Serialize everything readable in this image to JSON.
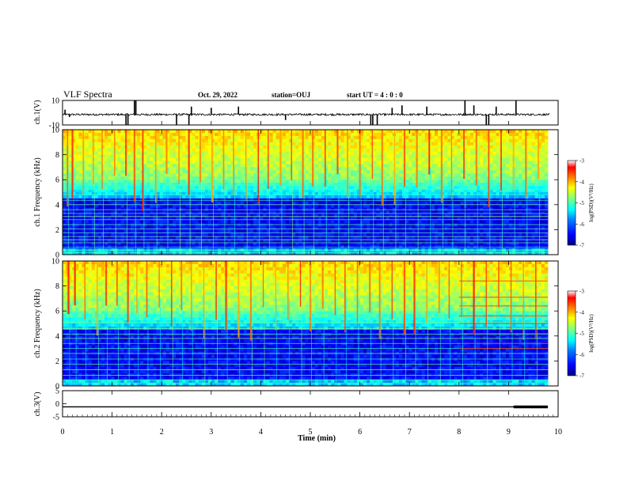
{
  "header": {
    "title": "VLF Spectra",
    "date": "Oct. 29, 2022",
    "station": "station=OUJ",
    "start_time": "start  UT =  4 : 0 : 0"
  },
  "chart_data": [
    {
      "type": "line",
      "panel": "ch1-waveform",
      "ylabel": "ch.1(V)",
      "ylim": [
        -10,
        10
      ],
      "yticks": [
        "10",
        "-10"
      ],
      "x_range_min": [
        0,
        9.83
      ],
      "baseline": -1.5,
      "noise_amplitude": 0.8,
      "spikes": [
        {
          "t": 0.05,
          "v": 2.5
        },
        {
          "t": 0.14,
          "v": -3.5
        },
        {
          "t": 1.28,
          "v": -10
        },
        {
          "t": 1.32,
          "v": -10
        },
        {
          "t": 1.45,
          "v": 10
        },
        {
          "t": 1.48,
          "v": 10
        },
        {
          "t": 2.3,
          "v": -10
        },
        {
          "t": 2.55,
          "v": -10
        },
        {
          "t": 2.6,
          "v": 5
        },
        {
          "t": 3.0,
          "v": 4
        },
        {
          "t": 3.55,
          "v": 5
        },
        {
          "t": 4.5,
          "v": -6
        },
        {
          "t": 6.22,
          "v": -10
        },
        {
          "t": 6.26,
          "v": -10
        },
        {
          "t": 6.35,
          "v": -10
        },
        {
          "t": 6.65,
          "v": 4
        },
        {
          "t": 6.85,
          "v": 6
        },
        {
          "t": 7.35,
          "v": 5
        },
        {
          "t": 8.12,
          "v": 10
        },
        {
          "t": 8.3,
          "v": 6
        },
        {
          "t": 8.55,
          "v": -10
        },
        {
          "t": 8.6,
          "v": -10
        },
        {
          "t": 8.75,
          "v": 5
        },
        {
          "t": 9.15,
          "v": 10
        }
      ]
    },
    {
      "type": "heatmap",
      "panel": "ch1-spectrogram",
      "ylabel": "ch.1 Frequency (kHz)",
      "ylim": [
        0,
        10
      ],
      "yticks": [
        "0",
        "2",
        "4",
        "6",
        "8",
        "10"
      ],
      "colorbar": {
        "label": "log(PSD)(V²/Hz)",
        "range": [
          -7,
          -3
        ],
        "ticks": [
          "-3",
          "-4",
          "-5",
          "-6",
          "-7"
        ],
        "colors": [
          "#00007f",
          "#0000ff",
          "#0080ff",
          "#00ffff",
          "#80ff80",
          "#ffff00",
          "#ff8000",
          "#ff0000",
          "#ffffff"
        ]
      },
      "tonal_lines_khz": [
        0.15,
        0.35,
        0.6,
        0.95,
        1.2,
        1.45,
        1.75,
        2.05,
        2.4,
        2.8,
        3.05,
        3.3,
        3.6,
        4.0,
        4.35,
        4.8,
        5.2,
        5.6,
        6.0
      ],
      "event_times_min": [
        0.1,
        0.2,
        0.42,
        0.62,
        0.8,
        1.05,
        1.28,
        1.45,
        1.62,
        1.88,
        2.1,
        2.35,
        2.55,
        2.78,
        3.02,
        3.25,
        3.45,
        3.7,
        3.95,
        4.15,
        4.4,
        4.62,
        4.85,
        5.05,
        5.3,
        5.55,
        5.75,
        6.0,
        6.25,
        6.45,
        6.7,
        6.9,
        7.15,
        7.4,
        7.65,
        7.85,
        8.1,
        8.35,
        8.6,
        8.85,
        9.1,
        9.35,
        9.6
      ]
    },
    {
      "type": "heatmap",
      "panel": "ch2-spectrogram",
      "ylabel": "ch.2 Frequency (kHz)",
      "ylim": [
        0,
        10
      ],
      "yticks": [
        "0",
        "2",
        "4",
        "6",
        "8",
        "10"
      ],
      "colorbar": {
        "label": "log(PSD)(V²/Hz)",
        "range": [
          -7,
          -3
        ],
        "ticks": [
          "-3",
          "-4",
          "-5",
          "-6",
          "-7"
        ]
      },
      "tonal_lines_khz": [
        0.2,
        0.5,
        0.85,
        1.3,
        1.75,
        2.15,
        2.6,
        3.0,
        3.4,
        3.8,
        4.15,
        4.6,
        5.1,
        5.5,
        6.0,
        7.1
      ],
      "event_times_min": [
        0.12,
        0.25,
        0.45,
        0.7,
        0.88,
        1.1,
        1.32,
        1.5,
        1.7,
        1.95,
        2.2,
        2.4,
        2.6,
        2.85,
        3.1,
        3.3,
        3.55,
        3.8,
        4.05,
        4.3,
        4.55,
        4.8,
        5.0,
        5.25,
        5.5,
        5.7,
        5.95,
        6.2,
        6.4,
        6.65,
        6.9,
        7.1,
        7.35,
        7.6,
        7.8,
        8.05,
        8.3,
        8.55,
        8.8,
        9.05,
        9.3,
        9.55
      ],
      "late_bands_khz": [
        3.0,
        3.4,
        4.2,
        5.0,
        5.6,
        6.4,
        7.1,
        8.4
      ],
      "late_bands_start_min": 8.0
    },
    {
      "type": "line",
      "panel": "ch3-waveform",
      "ylabel": "ch.3(V)",
      "ylim": [
        -5,
        5
      ],
      "yticks": [
        "5",
        "0",
        "-5"
      ],
      "value": -1.2,
      "thick_from_min": 9.1
    }
  ],
  "x_axis": {
    "label": "Time (min)",
    "range": [
      0,
      10
    ],
    "ticks": [
      "0",
      "1",
      "2",
      "3",
      "4",
      "5",
      "6",
      "7",
      "8",
      "9",
      "10"
    ]
  }
}
